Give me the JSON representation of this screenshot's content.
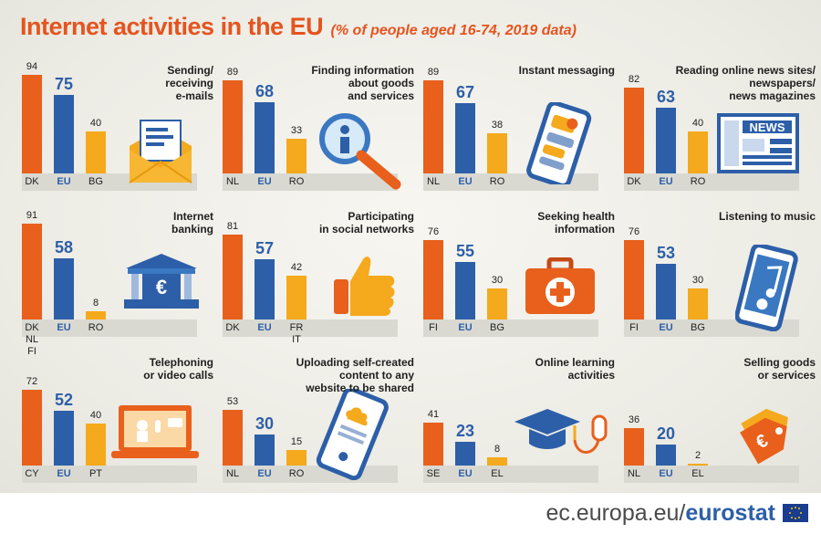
{
  "title": "Internet activities in the EU",
  "subtitle": "(% of people aged 16-74, 2019 data)",
  "footer": {
    "site_prefix": "ec.europa.eu/",
    "site_brand": "eurostat"
  },
  "colors": {
    "max": "#e8601c",
    "eu": "#2d5fa8",
    "min": "#f5a91c",
    "title": "#e5541e"
  },
  "chart_data": [
    {
      "type": "bar",
      "title": "Sending/\nreceiving\ne-mails",
      "icon": "envelope-icon",
      "categories": [
        "DK",
        "EU",
        "BG"
      ],
      "values": [
        94,
        75,
        40
      ],
      "ylim": [
        0,
        100
      ]
    },
    {
      "type": "bar",
      "title": "Finding information\nabout goods\nand services",
      "icon": "magnifier-icon",
      "categories": [
        "NL",
        "EU",
        "RO"
      ],
      "values": [
        89,
        68,
        33
      ],
      "ylim": [
        0,
        100
      ]
    },
    {
      "type": "bar",
      "title": "Instant messaging",
      "icon": "smartphone-chat-icon",
      "categories": [
        "NL",
        "EU",
        "RO"
      ],
      "values": [
        89,
        67,
        38
      ],
      "ylim": [
        0,
        100
      ]
    },
    {
      "type": "bar",
      "title": "Reading online news sites/\nnewspapers/\nnews magazines",
      "icon": "newspaper-icon",
      "icon_text": "NEWS",
      "categories": [
        "DK",
        "EU",
        "RO"
      ],
      "values": [
        82,
        63,
        40
      ],
      "ylim": [
        0,
        100
      ]
    },
    {
      "type": "bar",
      "title": "Internet\nbanking",
      "icon": "bank-icon",
      "icon_text": "€",
      "categories": [
        "DK\nNL\nFI",
        "EU",
        "RO"
      ],
      "values": [
        91,
        58,
        8
      ],
      "ylim": [
        0,
        100
      ]
    },
    {
      "type": "bar",
      "title": "Participating\nin social networks",
      "icon": "thumbs-up-icon",
      "categories": [
        "DK",
        "EU",
        "FR\nIT"
      ],
      "values": [
        81,
        57,
        42
      ],
      "ylim": [
        0,
        100
      ]
    },
    {
      "type": "bar",
      "title": "Seeking health\ninformation",
      "icon": "first-aid-kit-icon",
      "categories": [
        "FI",
        "EU",
        "BG"
      ],
      "values": [
        76,
        55,
        30
      ],
      "ylim": [
        0,
        100
      ]
    },
    {
      "type": "bar",
      "title": "Listening to music",
      "icon": "music-phone-icon",
      "categories": [
        "FI",
        "EU",
        "BG"
      ],
      "values": [
        76,
        53,
        30
      ],
      "ylim": [
        0,
        100
      ]
    },
    {
      "type": "bar",
      "title": "Telephoning\nor video calls",
      "icon": "laptop-call-icon",
      "categories": [
        "CY",
        "EU",
        "PT"
      ],
      "values": [
        72,
        52,
        40
      ],
      "ylim": [
        0,
        100
      ]
    },
    {
      "type": "bar",
      "title": "Uploading self-created\ncontent to any\nwebsite to be shared",
      "icon": "cloud-upload-phone-icon",
      "categories": [
        "NL",
        "EU",
        "RO"
      ],
      "values": [
        53,
        30,
        15
      ],
      "ylim": [
        0,
        100
      ]
    },
    {
      "type": "bar",
      "title": "Online learning\nactivities",
      "icon": "graduation-cap-icon",
      "categories": [
        "SE",
        "EU",
        "EL"
      ],
      "values": [
        41,
        23,
        8
      ],
      "ylim": [
        0,
        100
      ]
    },
    {
      "type": "bar",
      "title": "Selling goods\nor services",
      "icon": "price-tag-icon",
      "icon_text": "€",
      "categories": [
        "NL",
        "EU",
        "EL"
      ],
      "values": [
        36,
        20,
        2
      ],
      "ylim": [
        0,
        100
      ]
    }
  ]
}
